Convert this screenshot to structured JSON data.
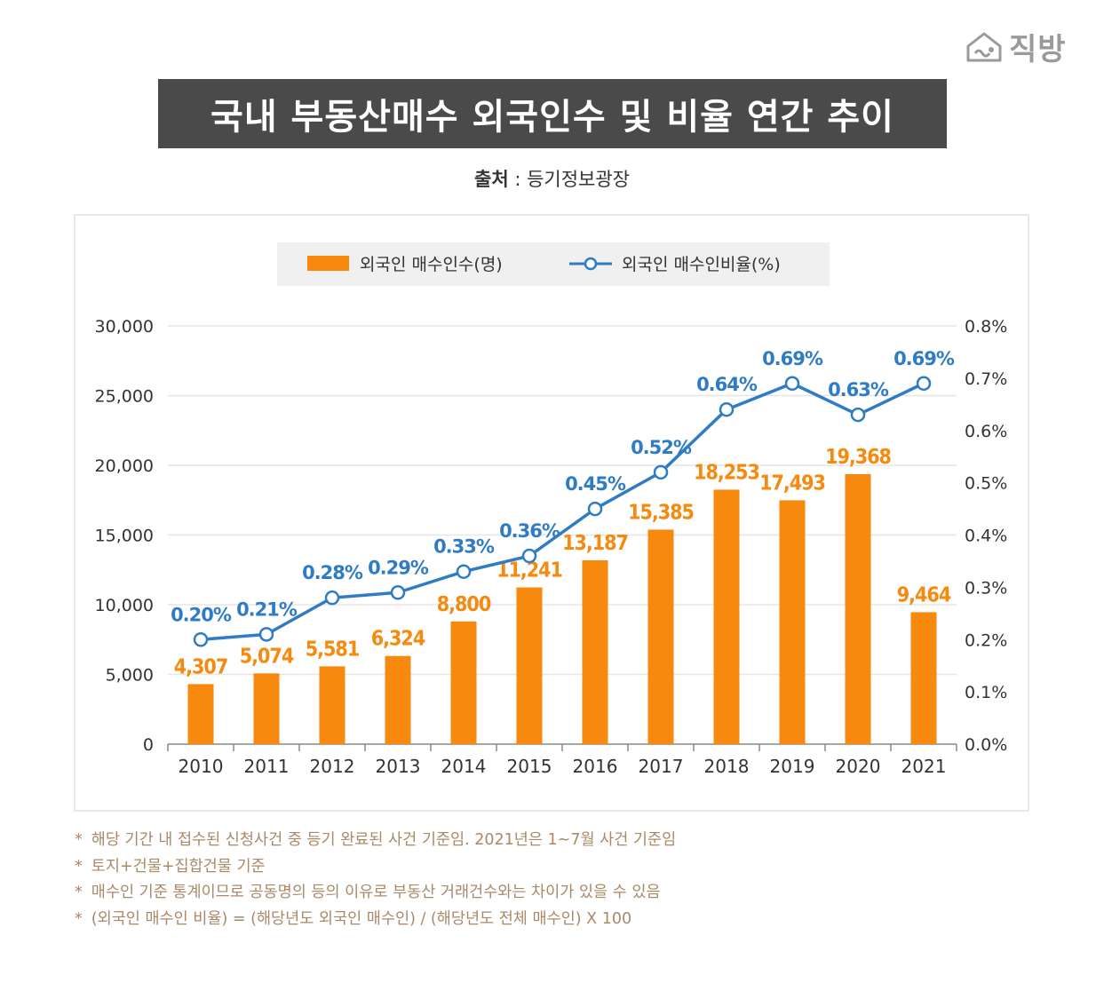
{
  "brand": {
    "logo_text": "직방",
    "logo_icon": "house-logo-icon"
  },
  "title": "국내 부동산매수 외국인수 및 비율 연간 추이",
  "source": {
    "label": "출처",
    "separator": " : ",
    "value": "등기정보광장"
  },
  "colors": {
    "bar": "#f7890f",
    "line": "#2f7cc4",
    "title_bg": "#4a4a4a",
    "note": "#a98968",
    "legend_bg": "#f0f0f0"
  },
  "chart_data": {
    "type": "bar",
    "categories": [
      "2010",
      "2011",
      "2012",
      "2013",
      "2014",
      "2015",
      "2016",
      "2017",
      "2018",
      "2019",
      "2020",
      "2021"
    ],
    "series": [
      {
        "name": "외국인 매수인수(명)",
        "type": "bar",
        "axis": "left",
        "values": [
          4307,
          5074,
          5581,
          6324,
          8800,
          11241,
          13187,
          15385,
          18253,
          17493,
          19368,
          9464
        ],
        "labels": [
          "4,307",
          "5,074",
          "5,581",
          "6,324",
          "8,800",
          "11,241",
          "13,187",
          "15,385",
          "18,253",
          "17,493",
          "19,368",
          "9,464"
        ]
      },
      {
        "name": "외국인 매수인비율(%)",
        "type": "line",
        "axis": "right",
        "values": [
          0.2,
          0.21,
          0.28,
          0.29,
          0.33,
          0.36,
          0.45,
          0.52,
          0.64,
          0.69,
          0.63,
          0.69
        ],
        "labels": [
          "0.20%",
          "0.21%",
          "0.28%",
          "0.29%",
          "0.33%",
          "0.36%",
          "0.45%",
          "0.52%",
          "0.64%",
          "0.69%",
          "0.63%",
          "0.69%"
        ]
      }
    ],
    "y_left": {
      "range": [
        0,
        30000
      ],
      "ticks": [
        "0",
        "5,000",
        "10,000",
        "15,000",
        "20,000",
        "25,000",
        "30,000"
      ]
    },
    "y_right": {
      "range": [
        0,
        0.8
      ],
      "ticks": [
        "0.0%",
        "0.1%",
        "0.2%",
        "0.3%",
        "0.4%",
        "0.5%",
        "0.6%",
        "0.7%",
        "0.8%"
      ]
    },
    "grid": true,
    "legend_position": "top-center"
  },
  "notes": [
    "해당 기간 내 접수된 신청사건 중 등기 완료된 사건 기준임. 2021년은 1~7월 사건 기준임",
    "토지+건물+집합건물 기준",
    "매수인 기준 통계이므로 공동명의 등의 이유로 부동산 거래건수와는 차이가 있을 수 있음",
    "(외국인 매수인 비율) = (해당년도 외국인 매수인) / (해당년도 전체 매수인) X 100"
  ],
  "note_marker": "*"
}
